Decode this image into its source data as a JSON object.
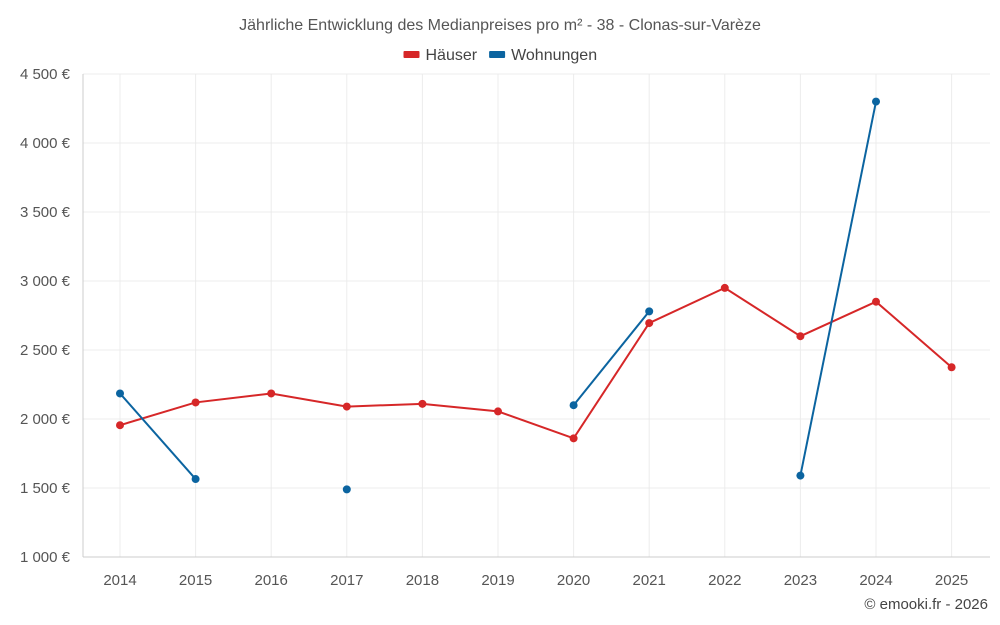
{
  "chart_data": {
    "type": "line",
    "title": "Jährliche Entwicklung des Medianpreises pro m² - 38 - Clonas-sur-Varèze",
    "categories": [
      "2014",
      "2015",
      "2016",
      "2017",
      "2018",
      "2019",
      "2020",
      "2021",
      "2022",
      "2023",
      "2024",
      "2025"
    ],
    "ylim": [
      1000,
      4500
    ],
    "yticks": [
      1000,
      1500,
      2000,
      2500,
      3000,
      3500,
      4000,
      4500
    ],
    "ytick_labels": [
      "1 000 €",
      "1 500 €",
      "2 000 €",
      "2 500 €",
      "3 000 €",
      "3 500 €",
      "4 000 €",
      "4 500 €"
    ],
    "legend_position": "top-center",
    "grid": true,
    "series": [
      {
        "name": "Häuser",
        "color": "#d62728",
        "values": [
          1955,
          2120,
          2185,
          2090,
          2110,
          2055,
          1860,
          2695,
          2950,
          2600,
          2850,
          2375
        ]
      },
      {
        "name": "Wohnungen",
        "color": "#0b64a0",
        "values": [
          2185,
          1565,
          null,
          1490,
          null,
          null,
          2100,
          2780,
          null,
          1590,
          4300,
          null
        ]
      }
    ]
  },
  "credit": "© emooki.fr - 2026"
}
